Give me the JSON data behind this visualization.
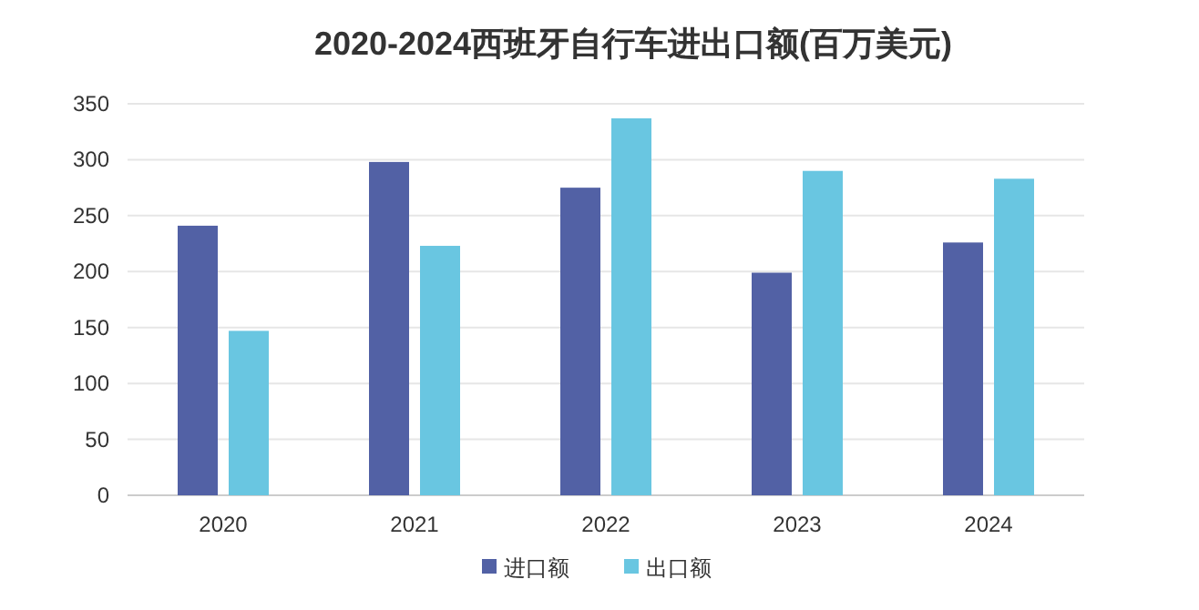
{
  "chart_data": {
    "type": "bar",
    "title": "2020-2024西班牙自行车进出口额(百万美元)",
    "categories": [
      "2020",
      "2021",
      "2022",
      "2023",
      "2024"
    ],
    "series": [
      {
        "name": "进口额",
        "color": "#5261a5",
        "values": [
          241,
          298,
          275,
          199,
          226
        ]
      },
      {
        "name": "出口额",
        "color": "#69c6e1",
        "values": [
          147,
          223,
          337,
          290,
          283
        ]
      }
    ],
    "ylim": [
      0,
      350
    ],
    "yticks": [
      0,
      50,
      100,
      150,
      200,
      250,
      300,
      350
    ],
    "grid": "y",
    "legend": "bottom"
  }
}
